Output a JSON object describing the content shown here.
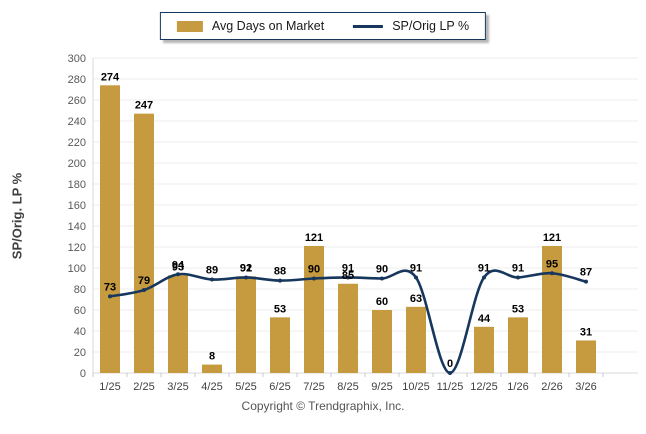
{
  "legend": {
    "bar_label": "Avg Days on Market",
    "line_label": "SP/Orig LP %"
  },
  "y_axis": {
    "title": "SP/Orig. LP %"
  },
  "footer": {
    "copyright": "Copyright © Trendgraphix, Inc."
  },
  "colors": {
    "bar": "#C69A3E",
    "line": "#17375D",
    "value_label": "#000000",
    "tick_label": "#595959",
    "x_label": "#3F3F3F",
    "grid": "#ECECEC",
    "axis_line": "#D9D9D9",
    "legend_border": "#17375D",
    "background": "#FFFFFF"
  },
  "chart_data": {
    "type": "combo",
    "categories": [
      "1/25",
      "2/25",
      "3/25",
      "4/25",
      "5/25",
      "6/25",
      "7/25",
      "8/25",
      "9/25",
      "10/25",
      "11/25",
      "12/25",
      "1/26",
      "2/26",
      "3/26"
    ],
    "series": [
      {
        "name": "Avg Days on Market",
        "type": "bar",
        "color": "#C69A3E",
        "values": [
          274,
          247,
          93,
          8,
          92,
          53,
          121,
          85,
          60,
          63,
          0,
          44,
          53,
          121,
          31
        ]
      },
      {
        "name": "SP/Orig LP %",
        "type": "line",
        "color": "#17375D",
        "values": [
          73,
          79,
          94,
          89,
          91,
          88,
          90,
          91,
          90,
          91,
          0,
          91,
          91,
          95,
          87
        ]
      }
    ],
    "title": "",
    "xlabel": "",
    "ylabel": "SP/Orig. LP %",
    "ylim": [
      0,
      300
    ],
    "ytick_step": 20,
    "grid": true,
    "legend_position": "top-center",
    "data_labels": true
  }
}
